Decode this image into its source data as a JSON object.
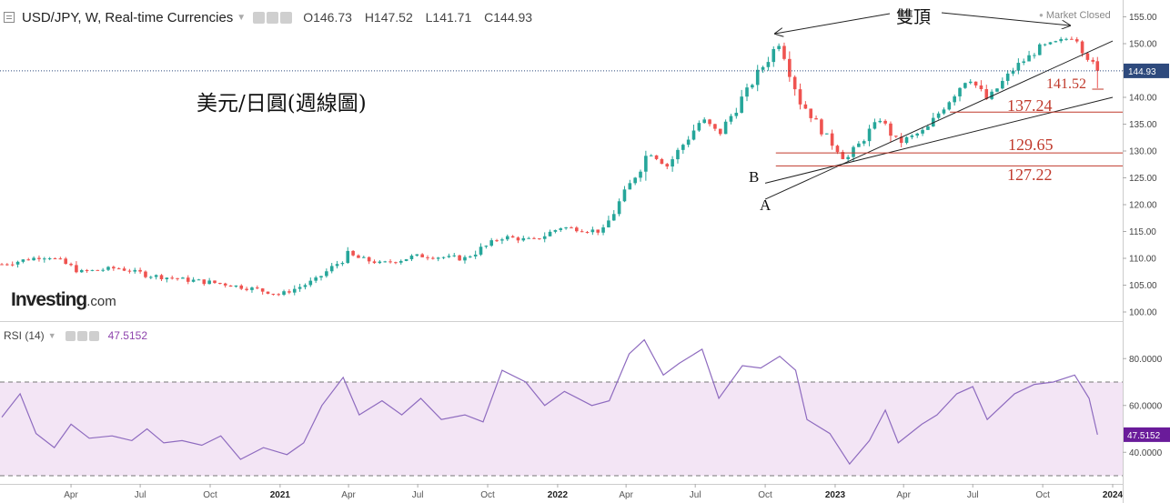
{
  "header": {
    "symbol": "USD/JPY, W, Real-time Currencies",
    "open": "O146.73",
    "high": "H147.52",
    "low": "L141.71",
    "close": "C144.93",
    "status": "Market Closed"
  },
  "logo": {
    "main": "Investing",
    "suffix": ".com"
  },
  "subtitle": "美元/日圓(週線圖)",
  "annotations": {
    "double_top": "雙頂",
    "trend_a": "A",
    "trend_b": "B",
    "level_1": "141.52",
    "level_2": "137.24",
    "level_3": "129.65",
    "level_4": "127.22"
  },
  "rsi_panel": {
    "label": "RSI (14)",
    "value": "47.5152"
  },
  "colors": {
    "up": "#26a69a",
    "down": "#ef5350",
    "rsi_line": "#8e6bbf",
    "rsi_band": "#f3e5f5",
    "annotation_red": "#c0392b",
    "price_tag": "#2e4a7d",
    "rsi_tag": "#6a1b9a"
  },
  "chart_data": [
    {
      "type": "candlestick",
      "title": "USD/JPY, W, Real-time Currencies",
      "y_ticks": [
        "100.00",
        "105.00",
        "110.00",
        "115.00",
        "120.00",
        "125.00",
        "130.00",
        "135.00",
        "140.00",
        "145.00",
        "150.00",
        "155.00"
      ],
      "ylim": [
        98,
        157
      ],
      "x_ticks": [
        "Apr",
        "Jul",
        "Oct",
        "2021",
        "Apr",
        "Jul",
        "Oct",
        "2022",
        "Apr",
        "Jul",
        "Oct",
        "2023",
        "Apr",
        "Jul",
        "Oct",
        "2024"
      ],
      "last_price": "144.93",
      "anchors": [
        [
          "2020-01-01",
          108.9
        ],
        [
          "2020-03-01",
          110.5
        ],
        [
          "2020-04-15",
          107.5
        ],
        [
          "2020-06-01",
          108.2
        ],
        [
          "2020-07-15",
          106.8
        ],
        [
          "2020-09-01",
          106.0
        ],
        [
          "2020-10-15",
          105.3
        ],
        [
          "2020-12-01",
          104.2
        ],
        [
          "2021-01-01",
          103.2
        ],
        [
          "2021-02-15",
          105.8
        ],
        [
          "2021-03-31",
          110.5
        ],
        [
          "2021-05-15",
          109.0
        ],
        [
          "2021-07-01",
          110.5
        ],
        [
          "2021-09-01",
          110.0
        ],
        [
          "2021-10-20",
          114.0
        ],
        [
          "2021-12-01",
          113.3
        ],
        [
          "2022-01-05",
          115.8
        ],
        [
          "2022-03-01",
          115.0
        ],
        [
          "2022-04-01",
          122.5
        ],
        [
          "2022-05-01",
          130.0
        ],
        [
          "2022-05-25",
          127.2
        ],
        [
          "2022-07-10",
          136.0
        ],
        [
          "2022-08-01",
          133.0
        ],
        [
          "2022-09-20",
          144.0
        ],
        [
          "2022-10-20",
          150.5
        ],
        [
          "2022-11-15",
          139.5
        ],
        [
          "2022-12-20",
          133.0
        ],
        [
          "2023-01-15",
          128.3
        ],
        [
          "2023-03-01",
          136.0
        ],
        [
          "2023-03-25",
          131.5
        ],
        [
          "2023-05-01",
          134.0
        ],
        [
          "2023-05-30",
          139.5
        ],
        [
          "2023-06-25",
          144.0
        ],
        [
          "2023-07-20",
          139.5
        ],
        [
          "2023-08-25",
          145.5
        ],
        [
          "2023-10-01",
          149.5
        ],
        [
          "2023-11-12",
          151.4
        ],
        [
          "2023-12-01",
          147.0
        ],
        [
          "2023-12-12",
          144.93
        ]
      ],
      "last_candle": {
        "open": 146.73,
        "high": 147.52,
        "low": 141.71,
        "close": 144.93
      },
      "trendlines": [
        {
          "name": "A",
          "from": [
            "2022-10-01",
            121.0
          ],
          "to": [
            "2024-01-01",
            150.5
          ]
        },
        {
          "name": "B",
          "from": [
            "2022-10-01",
            124.0
          ],
          "to": [
            "2024-01-01",
            140.0
          ]
        }
      ],
      "levels": [
        141.52,
        137.24,
        129.65,
        127.22
      ]
    },
    {
      "type": "line",
      "title": "RSI (14)",
      "y_ticks": [
        "40.0000",
        "60.0000",
        "80.0000"
      ],
      "ylim": [
        27,
        92
      ],
      "bands": [
        30,
        70
      ],
      "last_value": "47.5152",
      "values": [
        [
          "2020-01-01",
          55
        ],
        [
          "2020-01-25",
          65
        ],
        [
          "2020-02-15",
          48
        ],
        [
          "2020-03-10",
          42
        ],
        [
          "2020-04-01",
          52
        ],
        [
          "2020-04-25",
          46
        ],
        [
          "2020-05-25",
          47
        ],
        [
          "2020-06-20",
          45
        ],
        [
          "2020-07-10",
          50
        ],
        [
          "2020-08-01",
          44
        ],
        [
          "2020-08-25",
          45
        ],
        [
          "2020-09-20",
          43
        ],
        [
          "2020-10-15",
          47
        ],
        [
          "2020-11-10",
          37
        ],
        [
          "2020-12-10",
          42
        ],
        [
          "2021-01-10",
          39
        ],
        [
          "2021-02-01",
          44
        ],
        [
          "2021-02-25",
          60
        ],
        [
          "2021-03-25",
          72
        ],
        [
          "2021-04-15",
          56
        ],
        [
          "2021-05-15",
          62
        ],
        [
          "2021-06-10",
          56
        ],
        [
          "2021-07-05",
          63
        ],
        [
          "2021-08-01",
          54
        ],
        [
          "2021-09-01",
          56
        ],
        [
          "2021-09-25",
          53
        ],
        [
          "2021-10-20",
          75
        ],
        [
          "2021-11-20",
          70
        ],
        [
          "2021-12-15",
          60
        ],
        [
          "2022-01-10",
          66
        ],
        [
          "2022-02-15",
          60
        ],
        [
          "2022-03-10",
          62
        ],
        [
          "2022-04-05",
          82
        ],
        [
          "2022-04-25",
          88
        ],
        [
          "2022-05-20",
          73
        ],
        [
          "2022-06-10",
          78
        ],
        [
          "2022-07-10",
          84
        ],
        [
          "2022-08-01",
          63
        ],
        [
          "2022-09-01",
          77
        ],
        [
          "2022-09-25",
          76
        ],
        [
          "2022-10-20",
          81
        ],
        [
          "2022-11-10",
          75
        ],
        [
          "2022-11-25",
          54
        ],
        [
          "2022-12-25",
          48
        ],
        [
          "2023-01-20",
          35
        ],
        [
          "2023-02-15",
          45
        ],
        [
          "2023-03-08",
          58
        ],
        [
          "2023-03-25",
          44
        ],
        [
          "2023-04-25",
          52
        ],
        [
          "2023-05-15",
          56
        ],
        [
          "2023-06-10",
          65
        ],
        [
          "2023-07-01",
          68
        ],
        [
          "2023-07-20",
          54
        ],
        [
          "2023-08-25",
          65
        ],
        [
          "2023-09-20",
          69
        ],
        [
          "2023-10-15",
          70
        ],
        [
          "2023-11-12",
          73
        ],
        [
          "2023-12-01",
          63
        ],
        [
          "2023-12-12",
          47.5
        ]
      ]
    }
  ]
}
